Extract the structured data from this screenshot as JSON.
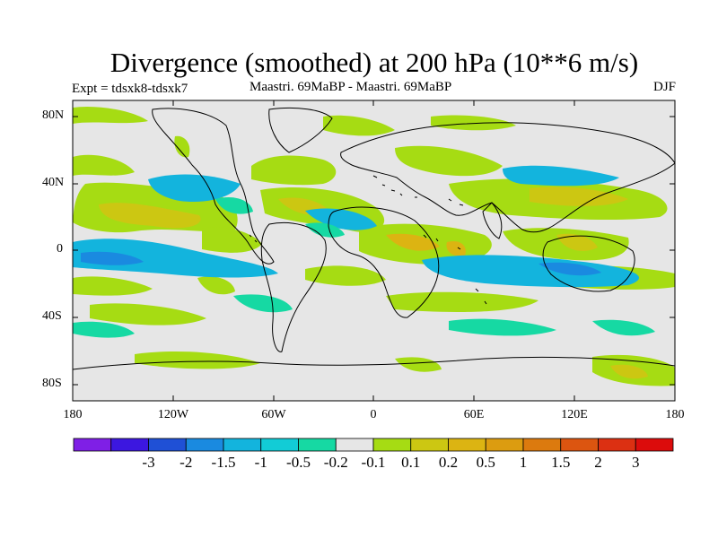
{
  "title": "Divergence (smoothed) at 200 hPa (10**6 m/s)",
  "subtitle_left": "Expt = tdsxk8-tdsxk7",
  "subtitle_center": "Maastri.  69MaBP - Maastri.  69MaBP",
  "subtitle_right": "DJF",
  "lat_labels": [
    "80N",
    "40N",
    "0",
    "40S",
    "80S"
  ],
  "lon_labels": [
    "180",
    "120W",
    "60W",
    "0",
    "60E",
    "120E",
    "180"
  ],
  "colorbar": {
    "colors": [
      "#7f1fe6",
      "#3c17e0",
      "#1f50d6",
      "#1a8ae0",
      "#13b4dd",
      "#12ccd6",
      "#16d9a3",
      "#e6e6e6",
      "#a6dc13",
      "#ccc712",
      "#dcb412",
      "#dc9c10",
      "#dc7a0e",
      "#dc5510",
      "#dc3012",
      "#dc0c0c"
    ],
    "labels": [
      "-3",
      "-2",
      "-1.5",
      "-1",
      "-0.5",
      "-0.2",
      "-0.1",
      "0.1",
      "0.2",
      "0.5",
      "1",
      "1.5",
      "2",
      "3"
    ]
  },
  "colors": {
    "ocean_background": "#e6e6e6",
    "coastline": "#000000"
  }
}
